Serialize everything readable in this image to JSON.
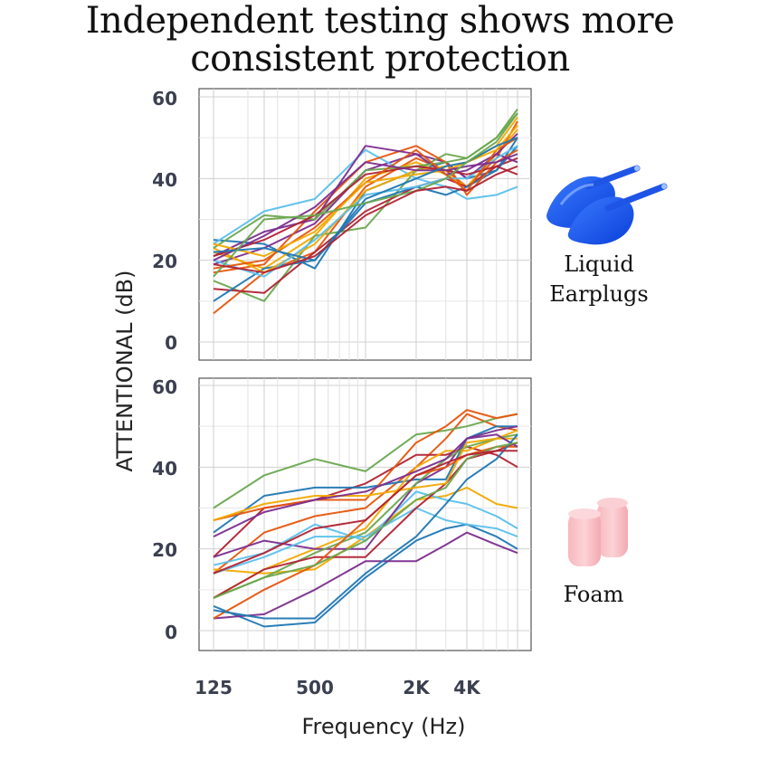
{
  "title_line1": "Independent testing shows more",
  "title_line2": "consistent protection",
  "ylabel": "ATTENTIONAL (dB)",
  "xlabel": "Frequency (Hz)",
  "x_tick_labels": [
    "125",
    "500",
    "2K",
    "4K"
  ],
  "y_tick_labels": [
    "0",
    "20",
    "40",
    "60"
  ],
  "label_liquid_line1": "Liquid",
  "label_liquid_line2": "Earplugs",
  "label_foam": "Foam",
  "colors": [
    "#1f77b4",
    "#e6550d",
    "#f2a900",
    "#7b2d8e",
    "#6aa84f",
    "#5bc0eb",
    "#b22234",
    "#1f77b4",
    "#e6550d",
    "#f2a900",
    "#7b2d8e",
    "#6aa84f",
    "#5bc0eb",
    "#b22234",
    "#e6550d",
    "#f2a900",
    "#7b2d8e",
    "#1f77b4",
    "#6aa84f",
    "#b22234"
  ],
  "chart_data": [
    {
      "type": "line",
      "title": "Liquid Earplugs",
      "x": [
        125,
        250,
        500,
        1000,
        2000,
        3000,
        4000,
        6000,
        8000
      ],
      "ylim": [
        -5,
        60
      ],
      "x_scale": "log",
      "grid": true,
      "series": [
        {
          "values": [
            25,
            24,
            18,
            37,
            42,
            44,
            40,
            42,
            50
          ]
        },
        {
          "values": [
            7,
            17,
            22,
            38,
            45,
            42,
            38,
            45,
            54
          ]
        },
        {
          "values": [
            22,
            18,
            26,
            40,
            44,
            41,
            38,
            46,
            52
          ]
        },
        {
          "values": [
            19,
            23,
            29,
            42,
            46,
            44,
            40,
            46,
            51
          ]
        },
        {
          "values": [
            15,
            10,
            26,
            28,
            42,
            46,
            45,
            50,
            57
          ]
        },
        {
          "values": [
            24,
            32,
            35,
            47,
            40,
            38,
            35,
            36,
            38
          ]
        },
        {
          "values": [
            13,
            12,
            22,
            32,
            38,
            40,
            38,
            43,
            45
          ]
        },
        {
          "values": [
            10,
            18,
            20,
            34,
            38,
            36,
            38,
            42,
            48
          ]
        },
        {
          "values": [
            17,
            19,
            32,
            44,
            48,
            44,
            36,
            44,
            47
          ]
        },
        {
          "values": [
            23,
            17,
            24,
            37,
            42,
            43,
            44,
            48,
            55
          ]
        },
        {
          "values": [
            21,
            27,
            30,
            48,
            46,
            41,
            42,
            46,
            44
          ]
        },
        {
          "values": [
            23,
            31,
            30,
            42,
            43,
            44,
            45,
            50,
            56
          ]
        },
        {
          "values": [
            20,
            16,
            25,
            36,
            38,
            40,
            40,
            45,
            48
          ]
        },
        {
          "values": [
            21,
            25,
            31,
            41,
            43,
            42,
            41,
            43,
            41
          ]
        },
        {
          "values": [
            18,
            20,
            28,
            39,
            47,
            41,
            37,
            47,
            50
          ]
        },
        {
          "values": [
            24,
            21,
            27,
            39,
            41,
            42,
            44,
            47,
            53
          ]
        },
        {
          "values": [
            20,
            26,
            33,
            44,
            42,
            42,
            43,
            44,
            46
          ]
        },
        {
          "values": [
            22,
            23,
            20,
            35,
            40,
            43,
            44,
            48,
            50
          ]
        },
        {
          "values": [
            16,
            30,
            31,
            34,
            37,
            40,
            44,
            49,
            56
          ]
        },
        {
          "values": [
            19,
            17,
            21,
            31,
            37,
            38,
            37,
            41,
            43
          ]
        }
      ]
    },
    {
      "type": "line",
      "title": "Foam",
      "x": [
        125,
        250,
        500,
        1000,
        2000,
        3000,
        4000,
        6000,
        8000
      ],
      "ylim": [
        -5,
        60
      ],
      "x_scale": "log",
      "grid": true,
      "series": [
        {
          "values": [
            6,
            1,
            2,
            13,
            22,
            25,
            26,
            23,
            20
          ]
        },
        {
          "values": [
            14,
            24,
            28,
            30,
            40,
            47,
            53,
            50,
            49
          ]
        },
        {
          "values": [
            15,
            14,
            15,
            23,
            32,
            33,
            35,
            31,
            30
          ]
        },
        {
          "values": [
            3,
            4,
            10,
            17,
            17,
            21,
            24,
            21,
            19
          ]
        },
        {
          "values": [
            30,
            38,
            42,
            39,
            48,
            49,
            50,
            52,
            53
          ]
        },
        {
          "values": [
            16,
            19,
            26,
            22,
            34,
            32,
            31,
            28,
            25
          ]
        },
        {
          "values": [
            18,
            30,
            32,
            36,
            43,
            43,
            45,
            43,
            40
          ]
        },
        {
          "values": [
            24,
            33,
            35,
            35,
            37,
            37,
            47,
            50,
            50
          ]
        },
        {
          "values": [
            27,
            30,
            32,
            32,
            46,
            50,
            54,
            52,
            53
          ]
        },
        {
          "values": [
            8,
            15,
            20,
            25,
            40,
            44,
            44,
            47,
            49
          ]
        },
        {
          "values": [
            18,
            22,
            20,
            20,
            36,
            40,
            47,
            49,
            50
          ]
        },
        {
          "values": [
            8,
            13,
            19,
            24,
            36,
            42,
            45,
            47,
            48
          ]
        },
        {
          "values": [
            14,
            18,
            23,
            23,
            30,
            27,
            26,
            25,
            23
          ]
        },
        {
          "values": [
            8,
            15,
            18,
            18,
            30,
            36,
            42,
            44,
            46
          ]
        },
        {
          "values": [
            3,
            10,
            16,
            27,
            38,
            40,
            43,
            45,
            45
          ]
        },
        {
          "values": [
            27,
            31,
            33,
            33,
            35,
            36,
            46,
            47,
            47
          ]
        },
        {
          "values": [
            23,
            29,
            32,
            34,
            39,
            42,
            47,
            48,
            45
          ]
        },
        {
          "values": [
            5,
            3,
            3,
            14,
            23,
            31,
            37,
            42,
            48
          ]
        },
        {
          "values": [
            8,
            13,
            16,
            22,
            32,
            35,
            42,
            45,
            46
          ]
        },
        {
          "values": [
            14,
            19,
            25,
            27,
            38,
            41,
            43,
            44,
            44
          ]
        }
      ]
    }
  ]
}
